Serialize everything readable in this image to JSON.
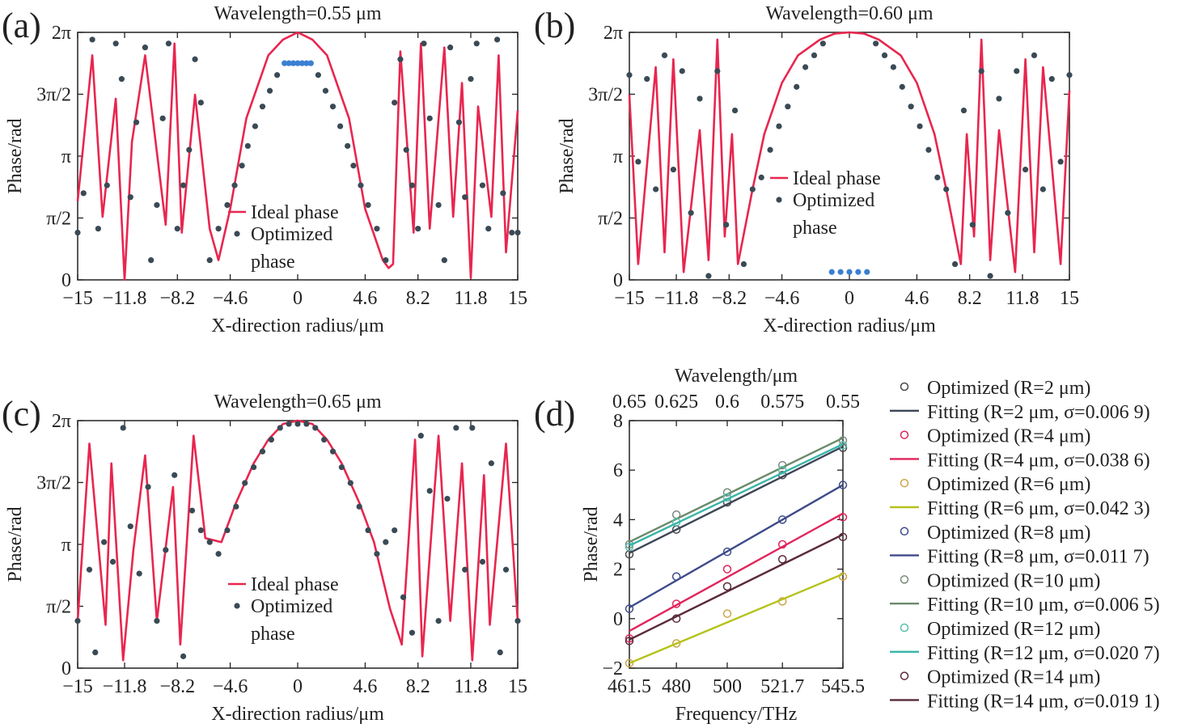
{
  "chart_data": [
    {
      "id": "a",
      "panel_label": "(a)",
      "type": "scatter",
      "title": "Wavelength=0.55 μm",
      "xlabel": "X-direction radius/μm",
      "ylabel": "Phase/rad",
      "xlim": [
        -15,
        15
      ],
      "ylim": [
        0,
        6.2832
      ],
      "xticks": [
        -15,
        -11.8,
        -8.2,
        -4.6,
        0,
        4.6,
        8.2,
        11.8,
        15
      ],
      "xtick_labels": [
        "−15",
        "−11.8",
        "−8.2",
        "−4.6",
        "0",
        "4.6",
        "8.2",
        "11.8",
        "15"
      ],
      "yticks": [
        0,
        1.5708,
        3.1416,
        4.7124,
        6.2832
      ],
      "ytick_labels": [
        "0",
        "π/2",
        "π",
        "3π/2",
        "2π"
      ],
      "legend": {
        "position": "center-left",
        "entries": [
          "Ideal phase",
          "Optimized",
          "phase"
        ]
      },
      "series": [
        {
          "name": "Ideal phase",
          "kind": "line",
          "color": "#e8264f",
          "x": [
            -15,
            -14.0,
            -13.3,
            -12.4,
            -11.8,
            -11.3,
            -10.4,
            -9.0,
            -8.4,
            -7.9,
            -7.0,
            -6.0,
            -5.4,
            -4.6,
            -3.5,
            -2.0,
            -1.0,
            0,
            1.0,
            2.0,
            3.5,
            4.6,
            5.8,
            6.2,
            6.5,
            7.0,
            7.9,
            8.4,
            9.0,
            10.0,
            10.6,
            11.2,
            11.8,
            12.3,
            13.2,
            13.7,
            14.2,
            15.0
          ],
          "y": [
            2.0,
            5.7,
            1.6,
            4.6,
            0.0,
            3.5,
            5.7,
            1.4,
            6.0,
            1.2,
            4.7,
            1.3,
            0.5,
            1.8,
            4.1,
            5.7,
            6.1,
            6.2832,
            6.1,
            5.7,
            4.1,
            1.8,
            0.5,
            0.3,
            0.4,
            5.8,
            1.2,
            6.0,
            1.3,
            5.9,
            1.6,
            5.0,
            0.05,
            4.4,
            1.6,
            5.7,
            0.7,
            4.3
          ]
        },
        {
          "name": "Optimized phase",
          "kind": "scatter",
          "color": "#3a4a55",
          "x": [
            -15,
            -14.6,
            -14.0,
            -13.6,
            -13.0,
            -12.4,
            -12.0,
            -11.4,
            -11.0,
            -10.4,
            -10.0,
            -9.6,
            -9.2,
            -8.8,
            -8.2,
            -7.8,
            -7.4,
            -7.0,
            -6.6,
            -6.0,
            -5.4,
            -4.8,
            -4.3,
            -3.8,
            -3.4,
            -2.9,
            -2.4,
            -1.9,
            -1.4,
            -0.9,
            -0.6,
            -0.3,
            0,
            0.3,
            0.6,
            0.9,
            1.4,
            1.9,
            2.4,
            2.9,
            3.4,
            3.8,
            4.3,
            4.8,
            5.4,
            6.0,
            6.6,
            7.0,
            7.4,
            7.8,
            8.2,
            8.6,
            9.0,
            9.6,
            10.0,
            10.4,
            11.0,
            11.4,
            11.8,
            12.2,
            12.6,
            13.0,
            13.6,
            14.0,
            14.6,
            15.0
          ],
          "y": [
            1.2,
            2.2,
            6.1,
            1.3,
            2.4,
            6.0,
            5.1,
            2.1,
            4.0,
            5.9,
            0.5,
            1.9,
            4.1,
            6.0,
            1.3,
            2.4,
            3.3,
            5.6,
            4.5,
            0.5,
            1.3,
            1.9,
            2.4,
            2.9,
            3.4,
            3.9,
            4.4,
            4.8,
            5.2,
            5.5,
            5.5,
            5.5,
            5.5,
            5.5,
            5.5,
            5.5,
            5.2,
            4.8,
            4.4,
            3.9,
            3.4,
            2.9,
            2.4,
            1.9,
            1.3,
            0.5,
            4.5,
            5.6,
            3.3,
            2.4,
            1.3,
            6.0,
            4.1,
            1.9,
            0.5,
            5.9,
            4.0,
            2.1,
            5.1,
            6.0,
            2.4,
            1.3,
            6.1,
            2.2,
            1.2,
            1.2
          ]
        }
      ]
    },
    {
      "id": "b",
      "panel_label": "(b)",
      "type": "scatter",
      "title": "Wavelength=0.60 μm",
      "xlabel": "X-direction radius/μm",
      "ylabel": "Phase/rad",
      "xlim": [
        -15,
        15
      ],
      "ylim": [
        0,
        6.2832
      ],
      "xticks": [
        -15,
        -11.8,
        -8.2,
        -4.6,
        0,
        4.6,
        8.2,
        11.8,
        15
      ],
      "xtick_labels": [
        "−15",
        "−11.8",
        "−8.2",
        "−4.6",
        "0",
        "4.6",
        "8.2",
        "11.8",
        "15"
      ],
      "yticks": [
        0,
        1.5708,
        3.1416,
        4.7124,
        6.2832
      ],
      "ytick_labels": [
        "0",
        "π/2",
        "π",
        "3π/2",
        "2π"
      ],
      "legend": {
        "position": "center-right",
        "entries": [
          "Ideal phase",
          "Optimized",
          "phase"
        ]
      },
      "series": [
        {
          "name": "Ideal phase",
          "kind": "line",
          "color": "#e8264f",
          "x": [
            -15,
            -14.4,
            -13.2,
            -12.6,
            -12.0,
            -11.3,
            -10.2,
            -9.6,
            -9.0,
            -8.5,
            -8.0,
            -7.6,
            -6.6,
            -5.8,
            -4.6,
            -3.5,
            -2.0,
            -1.0,
            0,
            1.0,
            2.0,
            3.5,
            4.6,
            5.8,
            6.6,
            7.6,
            8.0,
            8.5,
            9.0,
            9.6,
            10.2,
            11.3,
            12.0,
            12.6,
            13.2,
            14.4,
            15.0
          ],
          "y": [
            4.7,
            0.4,
            5.4,
            0.7,
            5.6,
            0.2,
            3.8,
            0.5,
            6.1,
            1.1,
            3.7,
            0.4,
            2.3,
            3.7,
            5.0,
            5.7,
            6.1,
            6.25,
            6.2832,
            6.25,
            6.1,
            5.7,
            5.0,
            3.7,
            2.3,
            0.4,
            3.7,
            1.1,
            6.1,
            0.5,
            3.8,
            0.2,
            5.6,
            0.7,
            5.4,
            0.4,
            4.8
          ]
        },
        {
          "name": "Optimized phase",
          "kind": "scatter",
          "color": "#3a4a55",
          "x": [
            -15,
            -14.4,
            -13.8,
            -13.2,
            -12.6,
            -12.0,
            -11.4,
            -10.8,
            -10.2,
            -9.6,
            -9.0,
            -8.4,
            -7.8,
            -7.2,
            -6.6,
            -6.0,
            -5.4,
            -4.8,
            -4.2,
            -3.6,
            -3.0,
            -2.4,
            -1.8,
            -1.2,
            -0.6,
            0,
            0.6,
            1.2,
            1.8,
            2.4,
            3.0,
            3.6,
            4.2,
            4.8,
            5.4,
            6.0,
            6.6,
            7.2,
            7.8,
            8.4,
            9.0,
            9.6,
            10.2,
            10.8,
            11.4,
            12.0,
            12.6,
            13.2,
            13.8,
            14.4,
            15.0
          ],
          "y": [
            5.2,
            3.0,
            5.1,
            2.3,
            5.7,
            2.8,
            5.3,
            1.7,
            4.6,
            0.1,
            5.3,
            1.4,
            4.3,
            0.4,
            2.3,
            2.6,
            3.3,
            3.9,
            4.4,
            4.9,
            5.4,
            5.7,
            6.0,
            0.2,
            0.2,
            0.2,
            0.2,
            0.2,
            6.0,
            5.7,
            5.4,
            4.9,
            4.4,
            3.9,
            3.3,
            2.6,
            2.3,
            0.4,
            4.3,
            1.4,
            5.3,
            0.1,
            4.6,
            1.7,
            5.3,
            2.8,
            5.7,
            2.3,
            5.1,
            3.0,
            5.2
          ]
        }
      ]
    },
    {
      "id": "c",
      "panel_label": "(c)",
      "type": "scatter",
      "title": "Wavelength=0.65 μm",
      "xlabel": "X-direction radius/μm",
      "ylabel": "Phase/rad",
      "xlim": [
        -15,
        15
      ],
      "ylim": [
        0,
        6.2832
      ],
      "xticks": [
        -15,
        -11.8,
        -8.2,
        -4.6,
        0,
        4.6,
        8.2,
        11.8,
        15
      ],
      "xtick_labels": [
        "−15",
        "−11.8",
        "−8.2",
        "−4.6",
        "0",
        "4.6",
        "8.2",
        "11.8",
        "15"
      ],
      "yticks": [
        0,
        1.5708,
        3.1416,
        4.7124,
        6.2832
      ],
      "ytick_labels": [
        "0",
        "π/2",
        "π",
        "3π/2",
        "2π"
      ],
      "legend": {
        "position": "center-left",
        "entries": [
          "Ideal phase",
          "Optimized",
          "phase"
        ]
      },
      "series": [
        {
          "name": "Ideal phase",
          "kind": "line",
          "color": "#e8264f",
          "x": [
            -15,
            -14.2,
            -13.1,
            -12.7,
            -11.9,
            -11.2,
            -10.4,
            -9.6,
            -8.5,
            -8.0,
            -7.1,
            -6.3,
            -5.2,
            -4.2,
            -3.0,
            -2.0,
            -1.0,
            0,
            1.0,
            2.0,
            3.0,
            4.2,
            5.2,
            6.3,
            7.1,
            8.0,
            8.5,
            9.6,
            10.4,
            11.2,
            11.9,
            12.7,
            13.1,
            14.2,
            15.0
          ],
          "y": [
            1.2,
            5.7,
            1.1,
            5.2,
            0.2,
            3.0,
            5.4,
            1.2,
            4.6,
            0.6,
            5.9,
            3.3,
            3.2,
            4.2,
            5.2,
            5.8,
            6.2,
            6.2832,
            6.2,
            5.8,
            5.2,
            4.2,
            3.2,
            1.5,
            0.6,
            5.8,
            0.3,
            5.9,
            1.2,
            5.2,
            0.2,
            4.9,
            1.1,
            5.7,
            1.2
          ]
        },
        {
          "name": "Optimized phase",
          "kind": "scatter",
          "color": "#3a4a55",
          "x": [
            -15,
            -14.2,
            -13.8,
            -13.2,
            -12.6,
            -11.9,
            -11.4,
            -10.8,
            -10.2,
            -9.6,
            -9.0,
            -8.4,
            -7.8,
            -7.2,
            -6.6,
            -6.0,
            -5.4,
            -4.8,
            -4.2,
            -3.6,
            -3.0,
            -2.4,
            -1.8,
            -1.2,
            -0.6,
            0,
            0.6,
            1.2,
            1.8,
            2.4,
            3.0,
            3.6,
            4.2,
            4.8,
            5.4,
            6.0,
            6.6,
            7.2,
            7.8,
            8.4,
            9.0,
            9.6,
            10.2,
            10.8,
            11.4,
            11.9,
            12.6,
            13.2,
            13.8,
            14.2,
            15.0
          ],
          "y": [
            1.2,
            2.5,
            0.4,
            3.2,
            2.7,
            6.1,
            3.6,
            2.4,
            4.6,
            1.2,
            3.0,
            4.9,
            0.3,
            4.0,
            3.5,
            3.2,
            2.9,
            3.5,
            4.1,
            4.7,
            5.1,
            5.5,
            5.8,
            6.1,
            6.2,
            6.2,
            6.2,
            6.1,
            5.8,
            5.5,
            5.1,
            4.7,
            4.1,
            3.5,
            2.9,
            3.2,
            3.5,
            1.8,
            0.9,
            5.9,
            4.5,
            1.2,
            4.3,
            6.1,
            2.5,
            6.1,
            2.7,
            5.2,
            0.4,
            2.5,
            1.2
          ]
        }
      ]
    },
    {
      "id": "d",
      "panel_label": "(d)",
      "type": "line",
      "xlabel": "Frequency/THz",
      "ylabel": "Phase/rad",
      "top_xlabel": "Wavelength/μm",
      "xlim": [
        461.5,
        545.5
      ],
      "ylim": [
        -2,
        8
      ],
      "xticks": [
        461.5,
        480,
        500,
        521.7,
        545.5
      ],
      "xtick_labels": [
        "461.5",
        "480",
        "500",
        "521.7",
        "545.5"
      ],
      "top_xticks": [
        461.5,
        480,
        500,
        521.7,
        545.5
      ],
      "top_xtick_labels": [
        "0.65",
        "0.625",
        "0.6",
        "0.575",
        "0.55"
      ],
      "yticks": [
        -2,
        0,
        2,
        4,
        6,
        8
      ],
      "ytick_labels": [
        "−2",
        "0",
        "2",
        "4",
        "6",
        "8"
      ],
      "legend": {
        "position": "outside-right"
      },
      "series": [
        {
          "name": "Optimized (R=2 μm)",
          "kind": "scatter",
          "color": "#4a4a4a",
          "x": [
            461.5,
            480,
            500,
            521.7,
            545.5
          ],
          "y": [
            2.6,
            3.6,
            4.7,
            5.8,
            6.9
          ]
        },
        {
          "name": "Fitting (R=2 μm, σ=0.006 9)",
          "kind": "line",
          "color": "#3d4658",
          "x": [
            461.5,
            545.5
          ],
          "y": [
            2.65,
            6.95
          ]
        },
        {
          "name": "Optimized (R=4 μm)",
          "kind": "scatter",
          "color": "#e0245a",
          "x": [
            461.5,
            480,
            500,
            521.7,
            545.5
          ],
          "y": [
            -0.8,
            0.6,
            2.0,
            3.0,
            4.1
          ]
        },
        {
          "name": "Fitting (R=4 μm, σ=0.038 6)",
          "kind": "line",
          "color": "#e0245a",
          "x": [
            461.5,
            545.5
          ],
          "y": [
            -0.5,
            4.25
          ]
        },
        {
          "name": "Optimized (R=6 μm)",
          "kind": "scatter",
          "color": "#cfa44a",
          "x": [
            461.5,
            480,
            500,
            521.7,
            545.5
          ],
          "y": [
            -1.8,
            -1.0,
            0.2,
            0.7,
            1.7
          ]
        },
        {
          "name": "Fitting (R=6 μm, σ=0.042 3)",
          "kind": "line",
          "color": "#b5c21a",
          "x": [
            461.5,
            545.5
          ],
          "y": [
            -1.8,
            1.8
          ]
        },
        {
          "name": "Optimized (R=8 μm)",
          "kind": "scatter",
          "color": "#3d4a8a",
          "x": [
            461.5,
            480,
            500,
            521.7,
            545.5
          ],
          "y": [
            0.4,
            1.7,
            2.7,
            4.0,
            5.4
          ]
        },
        {
          "name": "Fitting (R=8 μm, σ=0.011 7)",
          "kind": "line",
          "color": "#3d4a8a",
          "x": [
            461.5,
            545.5
          ],
          "y": [
            0.45,
            5.4
          ]
        },
        {
          "name": "Optimized (R=10 μm)",
          "kind": "scatter",
          "color": "#7a8a7a",
          "x": [
            461.5,
            480,
            500,
            521.7,
            545.5
          ],
          "y": [
            3.0,
            4.2,
            5.1,
            6.2,
            7.2
          ]
        },
        {
          "name": "Fitting (R=10 μm, σ=0.006 5)",
          "kind": "line",
          "color": "#6a8a6a",
          "x": [
            461.5,
            545.5
          ],
          "y": [
            3.1,
            7.3
          ]
        },
        {
          "name": "Optimized (R=12 μm)",
          "kind": "scatter",
          "color": "#5abfb0",
          "x": [
            461.5,
            480,
            500,
            521.7,
            545.5
          ],
          "y": [
            2.9,
            3.9,
            4.9,
            6.0,
            7.0
          ]
        },
        {
          "name": "Fitting (R=12 μm, σ=0.020 7)",
          "kind": "line",
          "color": "#3ab5a8",
          "x": [
            461.5,
            545.5
          ],
          "y": [
            2.95,
            7.05
          ]
        },
        {
          "name": "Optimized (R=14 μm)",
          "kind": "scatter",
          "color": "#5a2a3a",
          "x": [
            461.5,
            480,
            500,
            521.7,
            545.5
          ],
          "y": [
            -0.9,
            0.0,
            1.3,
            2.4,
            3.3
          ]
        },
        {
          "name": "Fitting (R=14 μm, σ=0.019 1)",
          "kind": "line",
          "color": "#5a2a3a",
          "x": [
            461.5,
            545.5
          ],
          "y": [
            -0.85,
            3.4
          ]
        }
      ]
    }
  ]
}
